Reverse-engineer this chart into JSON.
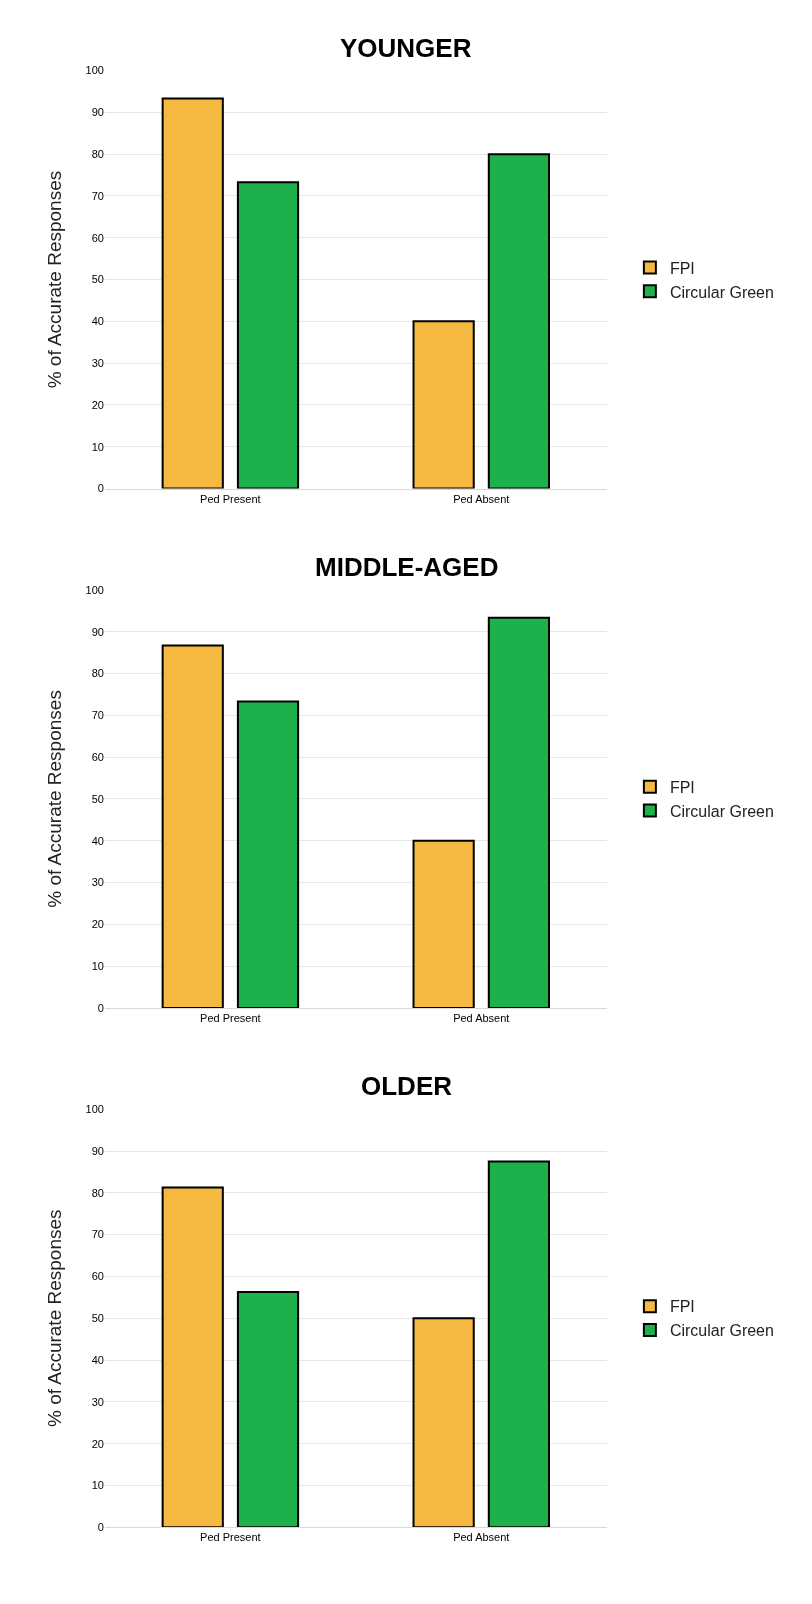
{
  "chart_data": [
    {
      "type": "bar",
      "title": "YOUNGER",
      "ylabel": "% of Accurate Responses",
      "categories": [
        "Ped Present",
        "Ped Absent"
      ],
      "series": [
        {
          "name": "FPI",
          "color": "#f5b942",
          "values": [
            93.3,
            40
          ]
        },
        {
          "name": "Circular Green",
          "color": "#1db04b",
          "values": [
            73.3,
            80
          ]
        }
      ],
      "ylim": [
        0,
        100
      ],
      "yticks": [
        0,
        10,
        20,
        30,
        40,
        50,
        60,
        70,
        80,
        90,
        100
      ],
      "grid": "y",
      "legend": "right"
    },
    {
      "type": "bar",
      "title": "MIDDLE-AGED",
      "ylabel": "% of Accurate Responses",
      "categories": [
        "Ped Present",
        "Ped Absent"
      ],
      "series": [
        {
          "name": "FPI",
          "color": "#f5b942",
          "values": [
            86.7,
            40
          ]
        },
        {
          "name": "Circular Green",
          "color": "#1db04b",
          "values": [
            73.3,
            93.3
          ]
        }
      ],
      "ylim": [
        0,
        100
      ],
      "yticks": [
        0,
        10,
        20,
        30,
        40,
        50,
        60,
        70,
        80,
        90,
        100
      ],
      "grid": "y",
      "legend": "right"
    },
    {
      "type": "bar",
      "title": "OLDER",
      "ylabel": "% of Accurate Responses",
      "categories": [
        "Ped Present",
        "Ped Absent"
      ],
      "series": [
        {
          "name": "FPI",
          "color": "#f5b942",
          "values": [
            81.3,
            50
          ]
        },
        {
          "name": "Circular Green",
          "color": "#1db04b",
          "values": [
            56.3,
            87.5
          ]
        }
      ],
      "ylim": [
        0,
        100
      ],
      "yticks": [
        0,
        10,
        20,
        30,
        40,
        50,
        60,
        70,
        80,
        90,
        100
      ],
      "grid": "y",
      "legend": "right"
    }
  ]
}
